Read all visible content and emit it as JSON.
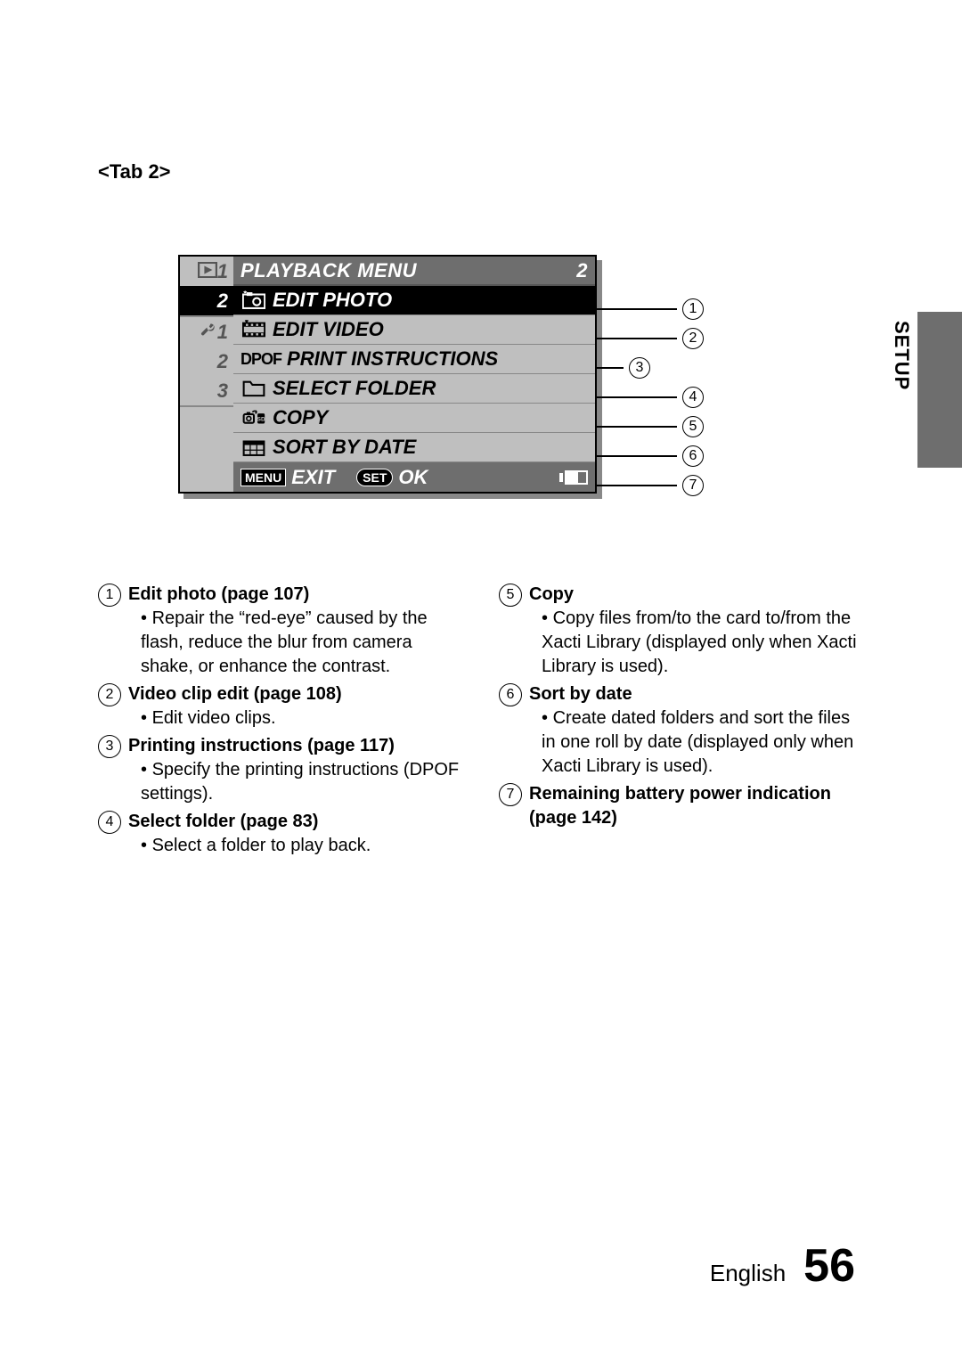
{
  "tab_heading": "<Tab 2>",
  "sidebar_label": "SETUP",
  "colors": {
    "page_bg": "#ffffff",
    "screen_bg_header": "#6e6e6e",
    "screen_bg_row": "#bfbfbf",
    "screen_bg_selected": "#000000",
    "screen_text_light": "#ffffff",
    "screen_text_dark": "#000000",
    "sidebar_tab_bg": "#6e6e6e",
    "shadow": "#888888"
  },
  "menu": {
    "header_title": "PLAYBACK MENU",
    "header_page": "2",
    "side_groups": [
      {
        "icon": "play",
        "tabs": [
          "1",
          "2"
        ],
        "active_index": 1
      },
      {
        "icon": "wrench",
        "tabs": [
          "1",
          "2",
          "3"
        ],
        "active_index": -1
      }
    ],
    "rows": [
      {
        "icon": "photo",
        "label": "EDIT PHOTO",
        "selected": true
      },
      {
        "icon": "video",
        "label": "EDIT VIDEO",
        "selected": false
      },
      {
        "icon": "dpof",
        "label": "PRINT INSTRUCTIONS",
        "selected": false
      },
      {
        "icon": "folder",
        "label": "SELECT FOLDER",
        "selected": false
      },
      {
        "icon": "copy",
        "label": "COPY",
        "selected": false
      },
      {
        "icon": "calendar",
        "label": "SORT BY DATE",
        "selected": false
      }
    ],
    "footer": {
      "menu_badge": "MENU",
      "exit_label": "EXIT",
      "set_badge": "SET",
      "ok_label": "OK"
    }
  },
  "callouts": [
    {
      "row": 1,
      "num": "1",
      "len": 90
    },
    {
      "row": 2,
      "num": "2",
      "len": 90
    },
    {
      "row": 3,
      "num": "3",
      "len": 30
    },
    {
      "row": 4,
      "num": "4",
      "len": 90
    },
    {
      "row": 5,
      "num": "5",
      "len": 90
    },
    {
      "row": 6,
      "num": "6",
      "len": 90
    },
    {
      "row": 7,
      "num": "7",
      "len": 90
    }
  ],
  "legend_left": [
    {
      "num": "1",
      "title": "Edit photo (page 107)",
      "bullets": [
        "Repair the “red-eye” caused by the flash, reduce the blur from camera shake, or enhance the contrast."
      ]
    },
    {
      "num": "2",
      "title": "Video clip edit (page 108)",
      "bullets": [
        "Edit video clips."
      ]
    },
    {
      "num": "3",
      "title": "Printing instructions (page 117)",
      "bullets": [
        "Specify the printing instructions (DPOF settings)."
      ]
    },
    {
      "num": "4",
      "title": "Select folder (page 83)",
      "bullets": [
        "Select a folder to play back."
      ]
    }
  ],
  "legend_right": [
    {
      "num": "5",
      "title": "Copy",
      "bullets": [
        "Copy files from/to the card to/from the Xacti Library (displayed only when Xacti Library is used)."
      ]
    },
    {
      "num": "6",
      "title": "Sort by date",
      "bullets": [
        "Create dated folders and sort the files in one roll by date (displayed only when Xacti Library is used)."
      ]
    },
    {
      "num": "7",
      "title": "Remaining battery power indication (page 142)",
      "bullets": []
    }
  ],
  "footer": {
    "language": "English",
    "page_number": "56"
  }
}
